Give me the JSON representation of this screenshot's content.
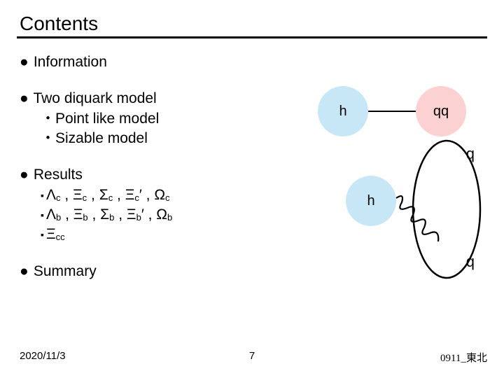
{
  "title": "Contents",
  "items": {
    "info": "Information",
    "two_diquark": "Two diquark model",
    "point_like": "Point like model",
    "sizable": "Sizable model",
    "results": "Results",
    "line_c": "Λ<sub class='s'>c</sub> , Ξ<sub class='s'>c</sub> , Σ<sub class='s'>c</sub> , Ξ<sub class='s'>c</sub>′ , Ω<sub class='s'>c</sub>",
    "line_b": "Λ<sub class='s'>b</sub> , Ξ<sub class='s'>b</sub> , Σ<sub class='s'>b</sub> , Ξ<sub class='s'>b</sub>′ , Ω<sub class='s'>b</sub>",
    "line_cc": "Ξ<sub class='s'>cc</sub>",
    "summary": "Summary"
  },
  "diagram": {
    "h_top": "h",
    "qq": "qq",
    "h_bottom": "h",
    "q_top": "q",
    "q_bottom": "q",
    "colors": {
      "h_fill": "#c7e7f6",
      "qq_fill": "#fcd1d1",
      "stroke": "#000000"
    }
  },
  "footer": {
    "date": "2020/11/3",
    "page": "7",
    "right": "0911_東北"
  }
}
